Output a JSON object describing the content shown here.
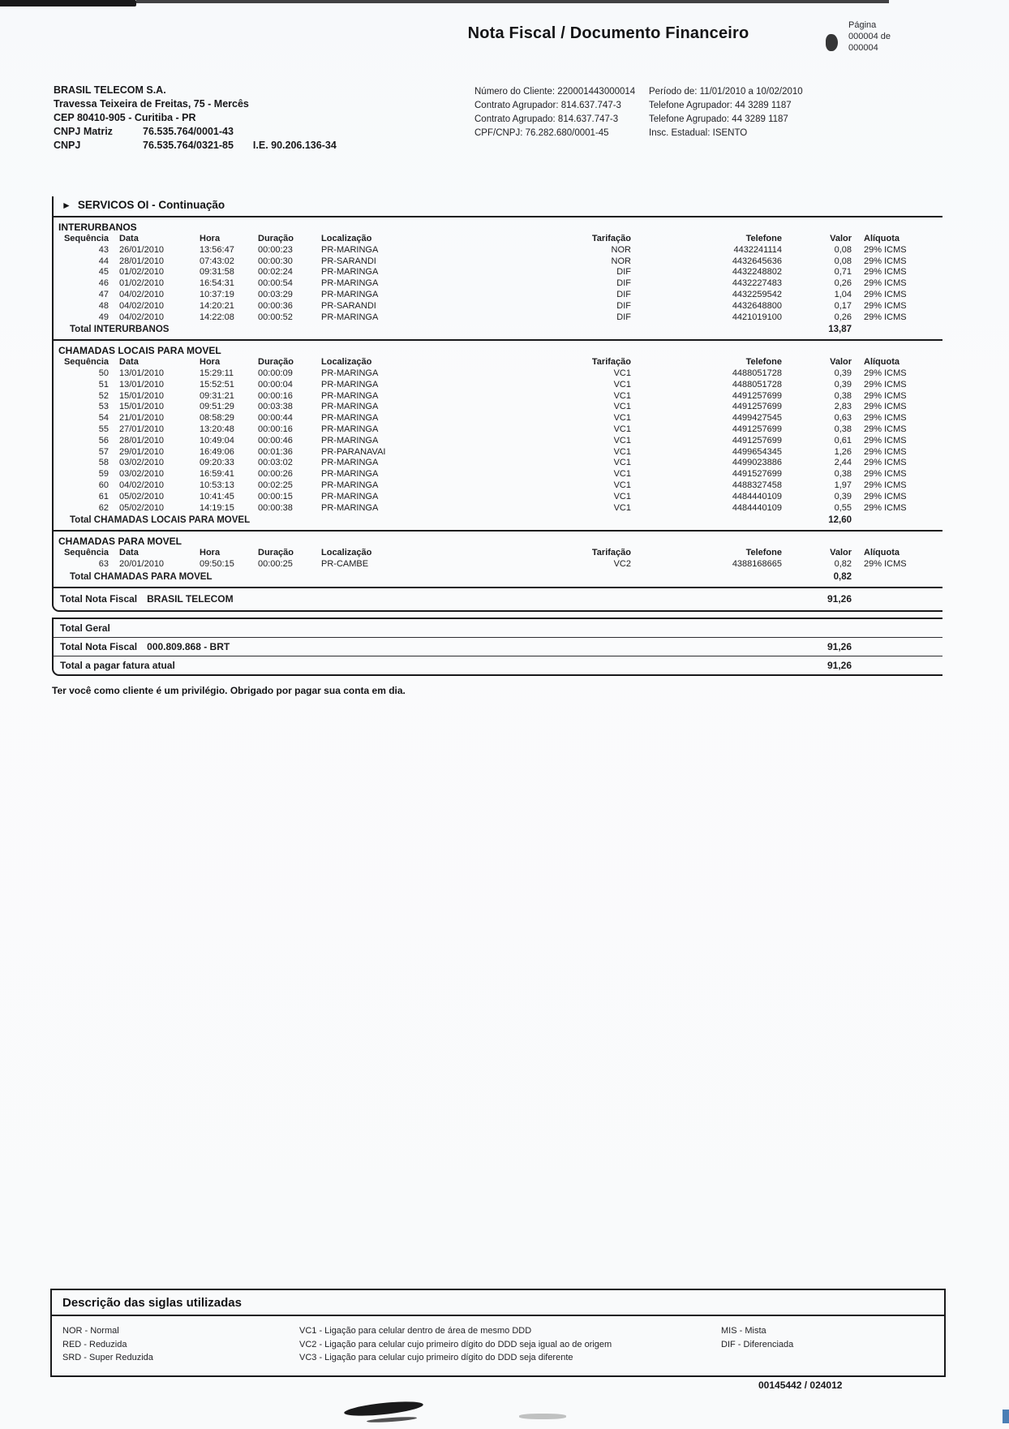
{
  "title": "Nota Fiscal / Documento Financeiro",
  "pagination": {
    "label": "Página",
    "line1": "000004 de",
    "line2": "000004"
  },
  "icons": {
    "section_arrow": "►"
  },
  "company": {
    "name": "BRASIL TELECOM S.A.",
    "address": "Travessa Teixeira de Freitas, 75 - Mercês",
    "city": "CEP 80410-905 - Curitiba - PR",
    "cnpj_matriz_label": "CNPJ Matriz",
    "cnpj_matriz": "76.535.764/0001-43",
    "cnpj_label": "CNPJ",
    "cnpj": "76.535.764/0321-85",
    "ie": "I.E. 90.206.136-34"
  },
  "client": {
    "left": [
      "Número do Cliente: 220001443000014",
      "Contrato Agrupador: 814.637.747-3",
      "Contrato Agrupado: 814.637.747-3",
      "CPF/CNPJ: 76.282.680/0001-45"
    ],
    "right": [
      "Período de: 11/01/2010 a 10/02/2010",
      "Telefone Agrupador: 44 3289 1187",
      "Telefone Agrupado: 44 3289 1187",
      "Insc. Estadual: ISENTO"
    ]
  },
  "section": {
    "title": "SERVICOS OI - Continuação"
  },
  "call_tables": [
    {
      "name": "INTERURBANOS",
      "columns": [
        "Sequência",
        "Data",
        "Hora",
        "Duração",
        "Localização",
        "Tarifação",
        "Telefone",
        "Valor",
        "Alíquota"
      ],
      "rows": [
        [
          "43",
          "26/01/2010",
          "13:56:47",
          "00:00:23",
          "PR-MARINGA",
          "NOR",
          "4432241114",
          "0,08",
          "29% ICMS"
        ],
        [
          "44",
          "28/01/2010",
          "07:43:02",
          "00:00:30",
          "PR-SARANDI",
          "NOR",
          "4432645636",
          "0,08",
          "29% ICMS"
        ],
        [
          "45",
          "01/02/2010",
          "09:31:58",
          "00:02:24",
          "PR-MARINGA",
          "DIF",
          "4432248802",
          "0,71",
          "29% ICMS"
        ],
        [
          "46",
          "01/02/2010",
          "16:54:31",
          "00:00:54",
          "PR-MARINGA",
          "DIF",
          "4432227483",
          "0,26",
          "29% ICMS"
        ],
        [
          "47",
          "04/02/2010",
          "10:37:19",
          "00:03:29",
          "PR-MARINGA",
          "DIF",
          "4432259542",
          "1,04",
          "29% ICMS"
        ],
        [
          "48",
          "04/02/2010",
          "14:20:21",
          "00:00:36",
          "PR-SARANDI",
          "DIF",
          "4432648800",
          "0,17",
          "29% ICMS"
        ],
        [
          "49",
          "04/02/2010",
          "14:22:08",
          "00:00:52",
          "PR-MARINGA",
          "DIF",
          "4421019100",
          "0,26",
          "29% ICMS"
        ]
      ],
      "total_label": "Total INTERURBANOS",
      "total_value": "13,87"
    },
    {
      "name": "CHAMADAS LOCAIS PARA MOVEL",
      "columns": [
        "Sequência",
        "Data",
        "Hora",
        "Duração",
        "Localização",
        "Tarifação",
        "Telefone",
        "Valor",
        "Alíquota"
      ],
      "rows": [
        [
          "50",
          "13/01/2010",
          "15:29:11",
          "00:00:09",
          "PR-MARINGA",
          "VC1",
          "4488051728",
          "0,39",
          "29% ICMS"
        ],
        [
          "51",
          "13/01/2010",
          "15:52:51",
          "00:00:04",
          "PR-MARINGA",
          "VC1",
          "4488051728",
          "0,39",
          "29% ICMS"
        ],
        [
          "52",
          "15/01/2010",
          "09:31:21",
          "00:00:16",
          "PR-MARINGA",
          "VC1",
          "4491257699",
          "0,38",
          "29% ICMS"
        ],
        [
          "53",
          "15/01/2010",
          "09:51:29",
          "00:03:38",
          "PR-MARINGA",
          "VC1",
          "4491257699",
          "2,83",
          "29% ICMS"
        ],
        [
          "54",
          "21/01/2010",
          "08:58:29",
          "00:00:44",
          "PR-MARINGA",
          "VC1",
          "4499427545",
          "0,63",
          "29% ICMS"
        ],
        [
          "55",
          "27/01/2010",
          "13:20:48",
          "00:00:16",
          "PR-MARINGA",
          "VC1",
          "4491257699",
          "0,38",
          "29% ICMS"
        ],
        [
          "56",
          "28/01/2010",
          "10:49:04",
          "00:00:46",
          "PR-MARINGA",
          "VC1",
          "4491257699",
          "0,61",
          "29% ICMS"
        ],
        [
          "57",
          "29/01/2010",
          "16:49:06",
          "00:01:36",
          "PR-PARANAVAI",
          "VC1",
          "4499654345",
          "1,26",
          "29% ICMS"
        ],
        [
          "58",
          "03/02/2010",
          "09:20:33",
          "00:03:02",
          "PR-MARINGA",
          "VC1",
          "4499023886",
          "2,44",
          "29% ICMS"
        ],
        [
          "59",
          "03/02/2010",
          "16:59:41",
          "00:00:26",
          "PR-MARINGA",
          "VC1",
          "4491527699",
          "0,38",
          "29% ICMS"
        ],
        [
          "60",
          "04/02/2010",
          "10:53:13",
          "00:02:25",
          "PR-MARINGA",
          "VC1",
          "4488327458",
          "1,97",
          "29% ICMS"
        ],
        [
          "61",
          "05/02/2010",
          "10:41:45",
          "00:00:15",
          "PR-MARINGA",
          "VC1",
          "4484440109",
          "0,39",
          "29% ICMS"
        ],
        [
          "62",
          "05/02/2010",
          "14:19:15",
          "00:00:38",
          "PR-MARINGA",
          "VC1",
          "4484440109",
          "0,55",
          "29% ICMS"
        ]
      ],
      "total_label": "Total CHAMADAS LOCAIS PARA MOVEL",
      "total_value": "12,60"
    },
    {
      "name": "CHAMADAS PARA MOVEL",
      "columns": [
        "Sequência",
        "Data",
        "Hora",
        "Duração",
        "Localização",
        "Tarifação",
        "Telefone",
        "Valor",
        "Alíquota"
      ],
      "rows": [
        [
          "63",
          "20/01/2010",
          "09:50:15",
          "00:00:25",
          "PR-CAMBE",
          "VC2",
          "4388168665",
          "0,82",
          "29% ICMS"
        ]
      ],
      "total_label": "Total CHAMADAS PARA MOVEL",
      "total_value": "0,82"
    }
  ],
  "grand_totals": {
    "nota_fiscal": {
      "label": "Total Nota Fiscal",
      "sublabel": "BRASIL TELECOM",
      "value": "91,26"
    },
    "geral_header": "Total Geral",
    "rows": [
      {
        "label": "Total Nota Fiscal",
        "sublabel": "000.809.868 - BRT",
        "value": "91,26"
      },
      {
        "label": "Total a pagar fatura atual",
        "sublabel": "",
        "value": "91,26"
      }
    ]
  },
  "message": "Ter você como cliente é um privilégio. Obrigado por pagar sua conta em dia.",
  "legend": {
    "title": "Descrição das siglas utilizadas",
    "columns": [
      [
        "NOR - Normal",
        "RED - Reduzida",
        "SRD - Super Reduzida"
      ],
      [
        "VC1 - Ligação para celular dentro de área de mesmo DDD",
        "VC2 - Ligação para celular cujo primeiro dígito do DDD seja igual ao de origem",
        "VC3 - Ligação para celular cujo primeiro dígito do DDD seja diferente"
      ],
      [
        "MIS - Mista",
        "DIF - Diferenciada"
      ]
    ]
  },
  "footer_code": "00145442 / 024012"
}
